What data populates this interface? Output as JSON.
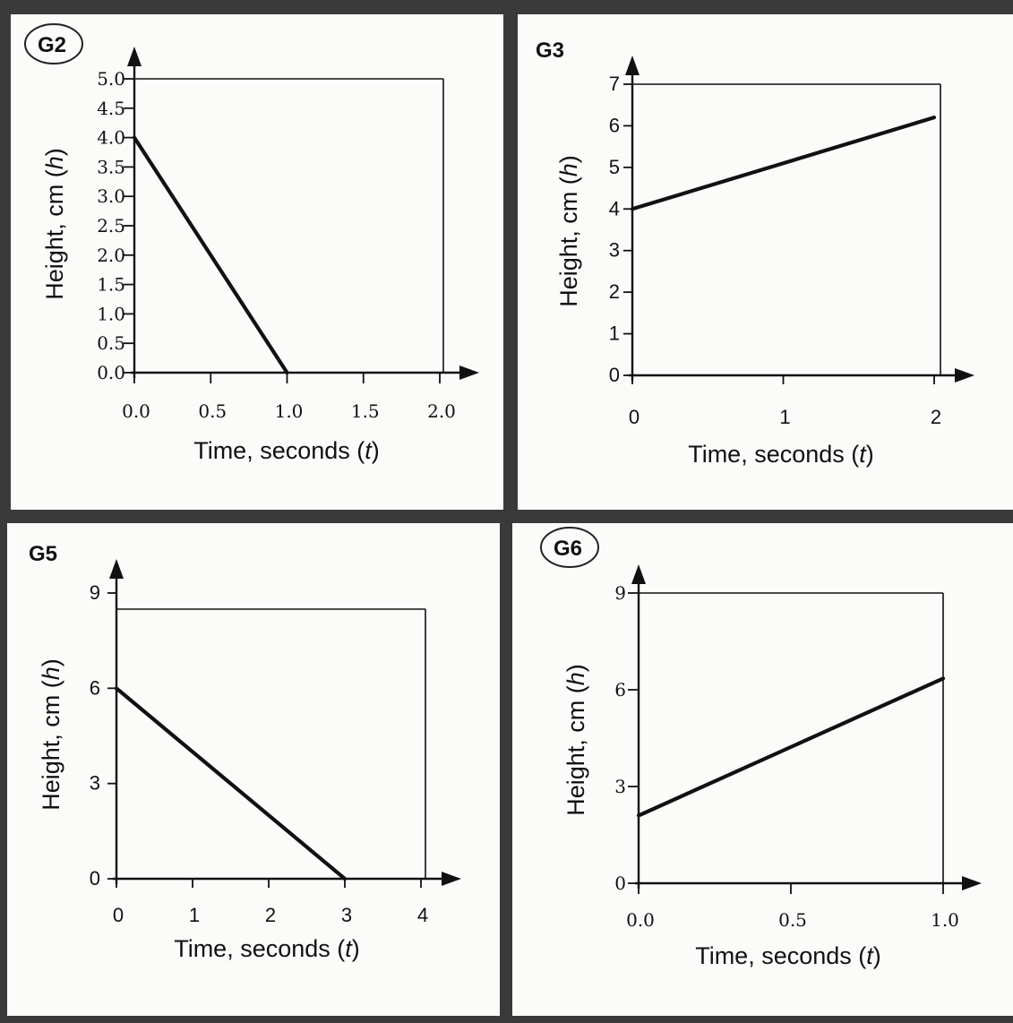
{
  "chart_data": [
    {
      "type": "line",
      "panel_label": "G2",
      "circled": true,
      "xlabel": "Time, seconds (",
      "xlabel_var": "t",
      "ylabel": "Height, cm (",
      "ylabel_var": "h",
      "label_close": ")",
      "xlim": [
        0,
        2.0
      ],
      "ylim": [
        0,
        5.0
      ],
      "xticks": [
        {
          "v": 0,
          "label": "0.0"
        },
        {
          "v": 0.5,
          "label": "0.5"
        },
        {
          "v": 1.0,
          "label": "1.0"
        },
        {
          "v": 1.5,
          "label": "1.5"
        },
        {
          "v": 2.0,
          "label": "2.0"
        }
      ],
      "yticks": [
        {
          "v": 0,
          "label": "0.0"
        },
        {
          "v": 0.5,
          "label": "0.5"
        },
        {
          "v": 1.0,
          "label": "1.0"
        },
        {
          "v": 1.5,
          "label": "1.5"
        },
        {
          "v": 2.0,
          "label": "2.0"
        },
        {
          "v": 2.5,
          "label": "2.5"
        },
        {
          "v": 3.0,
          "label": "3.0"
        },
        {
          "v": 3.5,
          "label": "3.5"
        },
        {
          "v": 4.0,
          "label": "4.0"
        },
        {
          "v": 4.5,
          "label": "4.5"
        },
        {
          "v": 5.0,
          "label": "5.0"
        }
      ],
      "series": [
        {
          "x": [
            0,
            1.0
          ],
          "y": [
            4.0,
            0
          ]
        }
      ]
    },
    {
      "type": "line",
      "panel_label": "G3",
      "circled": false,
      "xlabel": "Time, seconds (",
      "xlabel_var": "t",
      "ylabel": "Height, cm (",
      "ylabel_var": "h",
      "label_close": ")",
      "xlim": [
        0,
        2
      ],
      "ylim": [
        0,
        7
      ],
      "xticks": [
        {
          "v": 0,
          "label": "0"
        },
        {
          "v": 1,
          "label": "1"
        },
        {
          "v": 2,
          "label": "2"
        }
      ],
      "yticks": [
        {
          "v": 0,
          "label": "0"
        },
        {
          "v": 1,
          "label": "1"
        },
        {
          "v": 2,
          "label": "2"
        },
        {
          "v": 3,
          "label": "3"
        },
        {
          "v": 4,
          "label": "4"
        },
        {
          "v": 5,
          "label": "5"
        },
        {
          "v": 6,
          "label": "6"
        },
        {
          "v": 7,
          "label": "7"
        }
      ],
      "series": [
        {
          "x": [
            0,
            2
          ],
          "y": [
            4,
            6.2
          ]
        }
      ]
    },
    {
      "type": "line",
      "panel_label": "G5",
      "circled": false,
      "xlabel": "Time, seconds (",
      "xlabel_var": "t",
      "ylabel": "Height, cm (",
      "ylabel_var": "h",
      "label_close": ")",
      "xlim": [
        0,
        4
      ],
      "ylim": [
        0,
        9
      ],
      "xticks": [
        {
          "v": 0,
          "label": "0"
        },
        {
          "v": 1,
          "label": "1"
        },
        {
          "v": 2,
          "label": "2"
        },
        {
          "v": 3,
          "label": "3"
        },
        {
          "v": 4,
          "label": "4"
        }
      ],
      "yticks": [
        {
          "v": 0,
          "label": "0"
        },
        {
          "v": 3,
          "label": "3"
        },
        {
          "v": 6,
          "label": "6"
        },
        {
          "v": 9,
          "label": "9"
        }
      ],
      "series": [
        {
          "x": [
            0,
            3
          ],
          "y": [
            6,
            0
          ]
        }
      ]
    },
    {
      "type": "line",
      "panel_label": "G6",
      "circled": true,
      "xlabel": "Time, seconds (",
      "xlabel_var": "t",
      "ylabel": "Height, cm (",
      "ylabel_var": "h",
      "label_close": ")",
      "xlim": [
        0,
        1.0
      ],
      "ylim": [
        0,
        9
      ],
      "xticks": [
        {
          "v": 0,
          "label": "0.0"
        },
        {
          "v": 0.5,
          "label": "0.5"
        },
        {
          "v": 1.0,
          "label": "1.0"
        }
      ],
      "yticks": [
        {
          "v": 0,
          "label": "0"
        },
        {
          "v": 3,
          "label": "3"
        },
        {
          "v": 6,
          "label": "6"
        },
        {
          "v": 9,
          "label": "9"
        }
      ],
      "series": [
        {
          "x": [
            0,
            1.0
          ],
          "y": [
            2.1,
            6.35
          ]
        }
      ]
    }
  ]
}
